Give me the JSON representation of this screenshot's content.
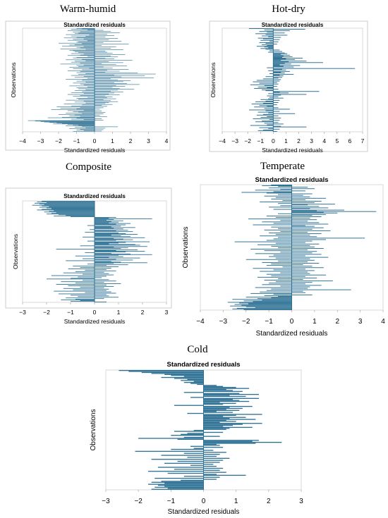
{
  "chart_data": [
    {
      "type": "bar",
      "orientation": "horizontal",
      "panel_title": "Warm-humid",
      "title": "Standardized residuals",
      "xlabel": "Standardized residuals",
      "ylabel": "Observations",
      "xlim": [
        -4,
        4
      ],
      "xticks": [
        -4,
        -3,
        -2,
        -1,
        0,
        1,
        2,
        3,
        4
      ],
      "observations": 220,
      "values": [
        -1.0,
        -0.7,
        -1.3,
        -0.4,
        0.5,
        -1.5,
        0.9,
        -0.8,
        -1.2,
        1.4,
        -0.9,
        -1.1,
        0.7,
        -1.6,
        -0.3,
        1.1,
        -1.3,
        -0.5,
        0.6,
        -1.0,
        -1.7,
        1.3,
        -0.6,
        -1.2,
        0.8,
        -1.5,
        -0.4,
        1.5,
        -0.9,
        -1.0,
        0.5,
        -2.0,
        -0.7,
        1.9,
        -1.1,
        -1.4,
        0.4,
        -1.8,
        -0.6,
        1.2,
        -1.0,
        -0.8,
        0.9,
        -1.9,
        -0.5,
        1.6,
        -1.4,
        -1.2,
        0.6,
        -1.1,
        0.7,
        -0.9,
        1.0,
        -1.3,
        -0.6,
        1.7,
        -0.8,
        -1.5,
        0.9,
        -0.4,
        1.3,
        -1.0,
        -1.2,
        0.6,
        1.1,
        -0.7,
        -1.6,
        2.1,
        -0.5,
        -1.1,
        0.8,
        -1.3,
        1.6,
        -0.8,
        0.4,
        -1.9,
        1.2,
        -0.6,
        -1.0,
        1.8,
        -0.9,
        0.5,
        -1.4,
        1.0,
        -0.3,
        -1.2,
        1.9,
        -0.7,
        0.7,
        -1.5,
        1.4,
        -0.8,
        0.6,
        -1.0,
        2.4,
        -0.5,
        3.4,
        -0.9,
        1.1,
        -1.3,
        2.8,
        -0.6,
        1.5,
        -1.1,
        3.3,
        -0.4,
        0.9,
        -1.6,
        1.3,
        -0.7,
        2.0,
        -1.0,
        1.6,
        -0.5,
        1.1,
        -1.2,
        1.8,
        -0.8,
        2.5,
        -0.6,
        1.2,
        -1.4,
        1.7,
        -0.4,
        1.0,
        -1.0,
        1.4,
        -0.9,
        2.2,
        -0.5,
        1.3,
        -1.1,
        0.9,
        -0.7,
        1.6,
        -1.3,
        1.1,
        -0.6,
        0.8,
        -1.5,
        1.4,
        -0.8,
        0.6,
        -1.2,
        1.0,
        -0.4,
        0.7,
        -1.0,
        1.2,
        -0.9,
        0.5,
        -1.6,
        0.9,
        -0.6,
        1.3,
        -1.1,
        0.8,
        -0.5,
        0.6,
        -1.7,
        1.0,
        -0.7,
        0.4,
        -1.3,
        0.7,
        -2.1,
        -0.8,
        0.5,
        -1.9,
        -1.0,
        0.3,
        -2.4,
        -0.6,
        -1.5,
        0.4,
        -1.2,
        -0.9,
        0.6,
        -1.6,
        -0.7,
        0.5,
        -2.0,
        -1.1,
        0.3,
        -1.4,
        -0.8,
        0.7,
        -1.8,
        -2.6,
        -1.0,
        0.4,
        -1.3,
        -0.6,
        0.5,
        -3.7,
        -3.3,
        -3.0,
        -2.8,
        -2.5,
        -2.1,
        -1.8,
        -2.3,
        -1.5,
        -1.2,
        -0.9,
        -1.6,
        -0.7,
        1.3,
        -1.1,
        -0.5,
        0.6,
        -1.4,
        -0.8,
        0.5,
        -1.0,
        -0.6,
        0.4,
        -1.2
      ]
    },
    {
      "type": "bar",
      "orientation": "horizontal",
      "panel_title": "Hot-dry",
      "title": "Standardized residuals",
      "xlabel": "Standardized residuals",
      "ylabel": "Observations",
      "xlim": [
        -4,
        7
      ],
      "xticks": [
        -4,
        -3,
        -2,
        -1,
        0,
        1,
        2,
        3,
        4,
        5,
        6,
        7
      ],
      "observations": 140,
      "values": [
        -1.9,
        2.5,
        -0.7,
        1.3,
        -1.1,
        -0.5,
        0.9,
        -1.4,
        -0.6,
        1.1,
        -0.9,
        -0.4,
        0.6,
        -1.2,
        -0.8,
        0.5,
        -1.0,
        -0.3,
        0.4,
        -1.1,
        -0.6,
        0.3,
        -0.9,
        -0.5,
        -1.3,
        -0.7,
        -0.4,
        -1.0,
        -0.6,
        0.5,
        -0.3,
        0.7,
        -0.4,
        0.9,
        1.1,
        0.6,
        1.3,
        0.8,
        1.5,
        0.7,
        2.3,
        1.0,
        1.7,
        0.6,
        2.6,
        1.2,
        3.9,
        0.9,
        1.4,
        0.5,
        2.1,
        0.8,
        1.6,
        -0.5,
        6.4,
        0.7,
        1.0,
        -0.4,
        1.3,
        0.6,
        0.9,
        -0.3,
        1.6,
        0.5,
        0.8,
        -0.6,
        0.7,
        0.4,
        -0.8,
        0.6,
        -1.3,
        0.5,
        -1.6,
        0.3,
        -1.1,
        0.4,
        -1.8,
        -0.7,
        0.3,
        -1.2,
        -0.5,
        -1.5,
        0.4,
        -0.9,
        -0.6,
        3.6,
        0.5,
        1.2,
        -0.4,
        2.6,
        0.6,
        -0.5,
        0.4,
        -0.3,
        0.8,
        -0.4,
        -1.0,
        0.5,
        -0.6,
        -1.4,
        0.4,
        -0.8,
        -1.7,
        0.3,
        -1.1,
        -0.5,
        -1.5,
        0.4,
        -0.7,
        1.3,
        -1.9,
        -0.6,
        0.5,
        -1.2,
        -0.4,
        1.7,
        -0.8,
        -1.3,
        0.4,
        -0.5,
        -1.0,
        0.6,
        -1.6,
        -0.3,
        0.5,
        -0.9,
        -1.4,
        0.4,
        -0.7,
        0.8,
        -0.5,
        -1.8,
        0.6,
        2.6,
        -1.1,
        -0.4,
        0.5,
        -0.8,
        -1.2,
        0.3
      ]
    },
    {
      "type": "bar",
      "orientation": "horizontal",
      "panel_title": "Composite",
      "title": "Standardized residuals",
      "xlabel": "Standardized residuals",
      "ylabel": "Observations",
      "xlim": [
        -3,
        3
      ],
      "xticks": [
        -3,
        -2,
        -1,
        0,
        1,
        2,
        3
      ],
      "observations": 150,
      "values": [
        -2.2,
        -2.4,
        -2.0,
        -2.5,
        -2.3,
        -2.1,
        -2.6,
        -2.2,
        -1.9,
        -2.3,
        -2.0,
        -1.8,
        -2.2,
        -2.4,
        -1.7,
        -1.9,
        -2.1,
        -1.6,
        -1.8,
        -2.0,
        -1.5,
        -1.2,
        -1.7,
        -1.0,
        0.9,
        0.6,
        2.4,
        0.8,
        0.5,
        1.2,
        0.7,
        1.0,
        0.6,
        1.5,
        0.9,
        1.3,
        -0.3,
        1.1,
        0.7,
        1.7,
        0.8,
        1.2,
        -0.2,
        1.4,
        0.9,
        1.6,
        -0.4,
        1.0,
        1.3,
        1.8,
        0.7,
        1.1,
        1.5,
        -0.5,
        2.1,
        0.8,
        1.2,
        1.6,
        0.9,
        -0.3,
        2.3,
        1.3,
        1.0,
        0.6,
        1.7,
        1.9,
        -0.6,
        2.2,
        0.8,
        1.4,
        1.1,
        -1.6,
        1.8,
        0.9,
        2.1,
        1.3,
        -0.4,
        0.7,
        1.5,
        2.4,
        1.0,
        -0.8,
        1.2,
        0.6,
        1.9,
        -0.5,
        0.9,
        1.6,
        -1.2,
        0.7,
        1.1,
        2.2,
        0.8,
        -0.3,
        1.4,
        0.5,
        -0.9,
        1.0,
        -0.6,
        0.7,
        -1.1,
        0.5,
        -0.4,
        0.9,
        -0.8,
        0.4,
        -1.3,
        0.6,
        -0.5,
        0.8,
        -1.8,
        0.5,
        -0.7,
        0.3,
        -1.0,
        -2.0,
        0.6,
        -0.5,
        0.9,
        -1.4,
        0.4,
        -0.8,
        1.1,
        -1.6,
        0.5,
        -1.1,
        0.8,
        -0.6,
        0.4,
        -1.3,
        0.6,
        -0.9,
        0.5,
        -1.7,
        0.7,
        -0.4,
        0.9,
        -1.5,
        0.5,
        -1.0,
        0.6,
        -0.7,
        1.0,
        -1.2,
        0.4,
        -0.8,
        -1.4,
        -0.6,
        -1.0,
        0.5
      ]
    },
    {
      "type": "bar",
      "orientation": "horizontal",
      "panel_title": "Temperate",
      "title": "Standardized residuals",
      "xlabel": "Standardized residuals",
      "ylabel": "Observations",
      "xlim": [
        -4,
        4
      ],
      "xticks": [
        -4,
        -3,
        -2,
        -1,
        0,
        1,
        2,
        3,
        4
      ],
      "observations": 170,
      "values": [
        -0.9,
        -1.3,
        -0.6,
        0.7,
        -1.0,
        1.0,
        -0.5,
        -1.6,
        0.6,
        -0.8,
        -2.2,
        -1.1,
        0.9,
        -0.6,
        0.5,
        -1.2,
        0.8,
        -0.7,
        1.5,
        -0.9,
        0.6,
        -0.4,
        1.3,
        -1.4,
        1.0,
        -0.6,
        1.9,
        0.7,
        -0.5,
        1.2,
        -1.0,
        1.6,
        0.8,
        -0.8,
        2.3,
        1.1,
        3.7,
        1.4,
        2.0,
        -0.6,
        1.5,
        0.9,
        -1.1,
        1.3,
        -0.7,
        0.8,
        -1.9,
        1.1,
        -0.5,
        0.7,
        -1.3,
        1.2,
        -0.8,
        1.6,
        -1.7,
        0.6,
        1.0,
        -0.9,
        1.4,
        -0.6,
        0.9,
        -1.2,
        1.7,
        -0.5,
        0.7,
        -1.0,
        1.3,
        -0.7,
        0.8,
        -1.4,
        1.1,
        -0.6,
        3.2,
        -0.8,
        1.5,
        -1.1,
        0.9,
        -2.5,
        0.6,
        -0.7,
        1.2,
        -1.5,
        0.8,
        -0.9,
        1.0,
        -0.6,
        1.4,
        -1.8,
        0.7,
        -1.2,
        1.1,
        -0.5,
        0.9,
        -1.6,
        1.3,
        -0.8,
        0.6,
        -1.0,
        1.6,
        -0.7,
        0.8,
        -2.0,
        1.0,
        -0.6,
        0.7,
        -1.3,
        1.2,
        -0.9,
        0.5,
        -1.1,
        0.9,
        -0.4,
        1.4,
        -1.7,
        0.6,
        -0.8,
        1.0,
        -1.4,
        0.7,
        -0.5,
        0.8,
        -1.1,
        1.5,
        -0.9,
        0.6,
        -1.5,
        1.1,
        -0.6,
        0.5,
        -1.2,
        1.8,
        -0.7,
        0.9,
        -1.0,
        0.6,
        -1.3,
        1.3,
        -0.5,
        0.8,
        -1.6,
        0.7,
        -0.9,
        2.6,
        -1.1,
        0.5,
        -1.4,
        0.6,
        -1.8,
        -0.8,
        0.9,
        -1.2,
        -0.6,
        -2.0,
        -0.9,
        -1.5,
        -2.6,
        -1.3,
        -2.1,
        -1.7,
        -2.8,
        -2.3,
        -1.9,
        -2.5,
        -2.2,
        -2.7,
        -2.0,
        -1.6,
        -2.4,
        -2.6,
        -2.1
      ]
    },
    {
      "type": "bar",
      "orientation": "horizontal",
      "panel_title": "Cold",
      "title": "Standardized residuals",
      "xlabel": "Standardized residuals",
      "ylabel": "Observations",
      "xlim": [
        -3,
        3
      ],
      "xticks": [
        -3,
        -2,
        -1,
        0,
        1,
        2,
        3
      ],
      "observations": 120,
      "values": [
        -2.6,
        -2.3,
        -1.9,
        -1.6,
        -1.2,
        -1.0,
        -0.6,
        -1.3,
        -0.9,
        -0.5,
        -0.7,
        -0.3,
        -0.6,
        -0.4,
        -0.2,
        0.4,
        0.6,
        1.0,
        1.4,
        0.7,
        0.9,
        1.2,
        -0.6,
        1.1,
        1.7,
        0.8,
        1.3,
        -0.4,
        1.7,
        0.9,
        1.1,
        1.4,
        0.5,
        1.0,
        0.6,
        -0.9,
        1.5,
        0.8,
        1.2,
        0.7,
        1.1,
        0.4,
        0.9,
        -0.5,
        1.8,
        1.0,
        0.6,
        1.3,
        0.8,
        1.6,
        0.7,
        1.0,
        0.5,
        1.8,
        1.2,
        0.9,
        0.6,
        1.5,
        0.8,
        0.7,
        -0.3,
        -0.9,
        0.6,
        -0.5,
        -0.7,
        -1.0,
        0.5,
        -0.6,
        -2.0,
        -0.8,
        1.7,
        1.5,
        2.4,
        1.6,
        0.4,
        0.5,
        -0.4,
        0.6,
        -0.3,
        -1.0,
        0.3,
        -2.1,
        0.7,
        -0.6,
        0.5,
        -1.3,
        0.4,
        -0.5,
        0.8,
        -1.6,
        0.6,
        -0.8,
        0.5,
        -1.2,
        0.3,
        -0.4,
        0.4,
        -1.4,
        0.6,
        -0.9,
        0.5,
        -1.7,
        0.7,
        -1.1,
        0.4,
        1.3,
        -0.6,
        0.5,
        -1.5,
        0.4,
        -0.7,
        -1.3,
        -1.6,
        -1.2,
        -1.7,
        -1.4,
        -1.2,
        -1.5,
        -1.1,
        -1.6
      ]
    }
  ]
}
